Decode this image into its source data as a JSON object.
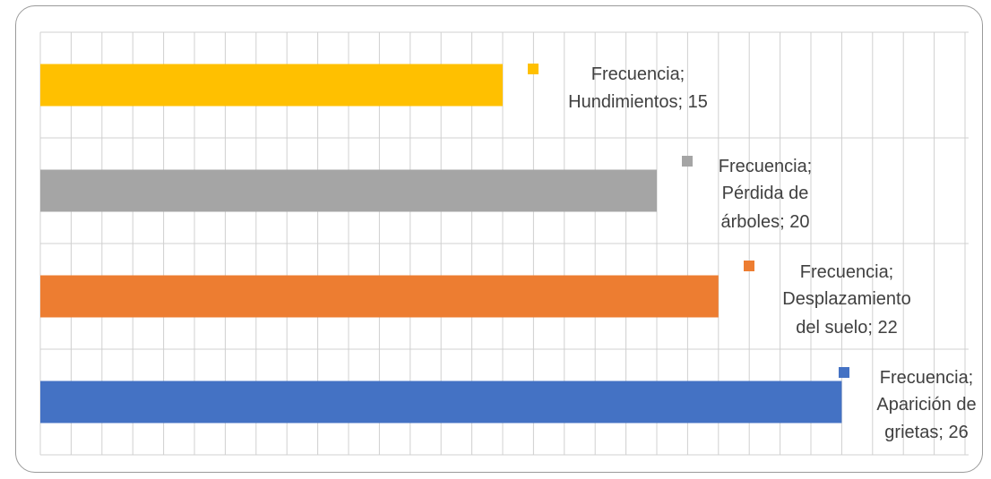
{
  "chart_data": {
    "type": "bar",
    "orientation": "horizontal",
    "categories": [
      "Aparición de grietas",
      "Desplazamiento del suelo",
      "Pérdida de árboles",
      "Hundimientos"
    ],
    "series": [
      {
        "name": "Frecuencia",
        "values": [
          26,
          22,
          20,
          15
        ]
      }
    ],
    "colors": [
      "#4472C4",
      "#ED7D31",
      "#A5A5A5",
      "#FFC000"
    ],
    "data_labels": [
      [
        "Frecuencia;",
        "Aparición de",
        "grietas; 26"
      ],
      [
        "Frecuencia;",
        "Desplazamiento",
        "del suelo; 22"
      ],
      [
        "Frecuencia;",
        "Pérdida de",
        "árboles; 20"
      ],
      [
        "Frecuencia;",
        "Hundimientos; 15"
      ]
    ],
    "xlim": [
      0,
      30
    ],
    "grid": true,
    "legend": "none"
  }
}
